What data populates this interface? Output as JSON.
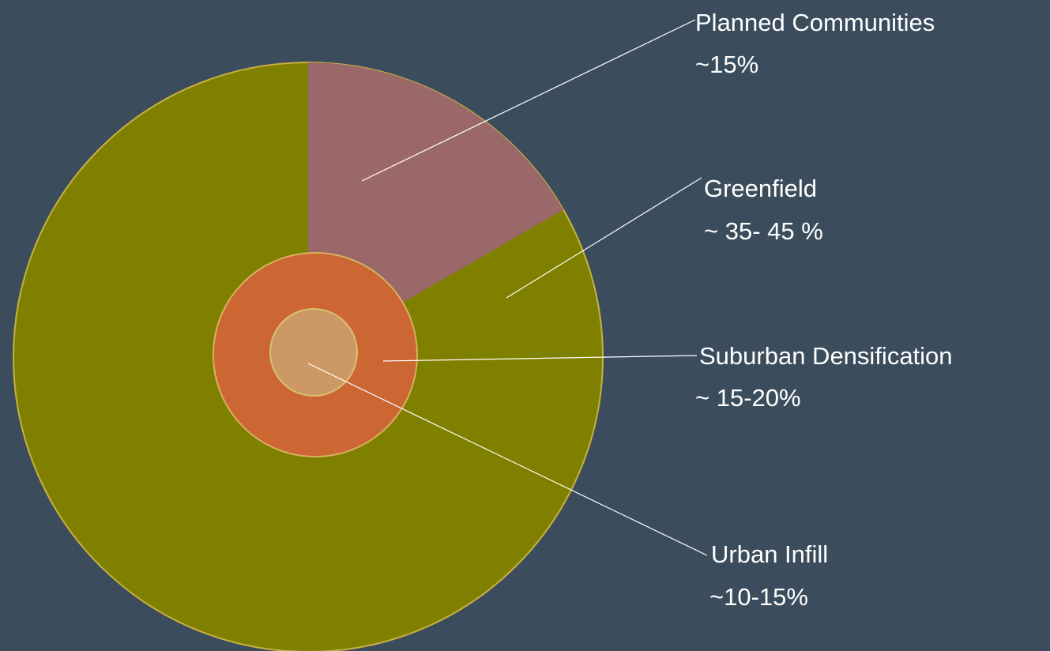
{
  "labels": [
    {
      "name": "Planned Communities",
      "share": "~15%"
    },
    {
      "name": "Greenfield",
      "share": "~ 35- 45 %"
    },
    {
      "name": "Suburban Densification",
      "share": "~ 15-20%"
    },
    {
      "name": "Urban Infill",
      "share": "~10-15%"
    }
  ]
}
